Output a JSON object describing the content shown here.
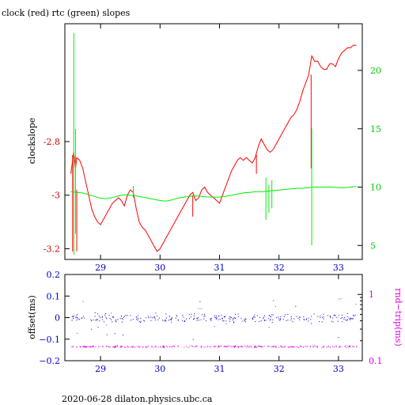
{
  "chart_data": [
    {
      "type": "line",
      "title": "clock (red) rtc (green) slopes",
      "xlabel": "",
      "ylabel": "clockslope",
      "xlim": [
        28.4,
        33.4
      ],
      "ylim": [
        -3.24,
        -2.36
      ],
      "y2lim": [
        3.8,
        24.0
      ],
      "x_ticks": [
        29,
        30,
        31,
        32,
        33
      ],
      "y_ticks": [
        -2.8,
        -3,
        -3.2
      ],
      "y_tick_labels": [
        "-2.8",
        "-3",
        "-3.2"
      ],
      "y2_ticks": [
        5,
        10,
        15,
        20
      ],
      "series": [
        {
          "name": "clock",
          "axis": "left",
          "color": "#ff0000",
          "points": [
            [
              28.5,
              -2.92
            ],
            [
              28.55,
              -2.84
            ],
            [
              28.58,
              -2.9
            ],
            [
              28.6,
              -2.86
            ],
            [
              28.65,
              -2.87
            ],
            [
              28.7,
              -2.9
            ],
            [
              28.75,
              -2.95
            ],
            [
              28.8,
              -3.0
            ],
            [
              28.85,
              -3.05
            ],
            [
              28.9,
              -3.08
            ],
            [
              28.95,
              -3.1
            ],
            [
              29.0,
              -3.11
            ],
            [
              29.05,
              -3.09
            ],
            [
              29.1,
              -3.07
            ],
            [
              29.15,
              -3.05
            ],
            [
              29.2,
              -3.03
            ],
            [
              29.3,
              -3.01
            ],
            [
              29.35,
              -3.02
            ],
            [
              29.4,
              -3.04
            ],
            [
              29.45,
              -3.0
            ],
            [
              29.5,
              -2.98
            ],
            [
              29.55,
              -2.99
            ],
            [
              29.6,
              -3.05
            ],
            [
              29.65,
              -3.1
            ],
            [
              29.7,
              -3.12
            ],
            [
              29.75,
              -3.13
            ],
            [
              29.8,
              -3.15
            ],
            [
              29.85,
              -3.17
            ],
            [
              29.9,
              -3.19
            ],
            [
              29.95,
              -3.21
            ],
            [
              30.0,
              -3.2
            ],
            [
              30.05,
              -3.18
            ],
            [
              30.1,
              -3.16
            ],
            [
              30.15,
              -3.14
            ],
            [
              30.2,
              -3.12
            ],
            [
              30.25,
              -3.1
            ],
            [
              30.3,
              -3.08
            ],
            [
              30.35,
              -3.06
            ],
            [
              30.4,
              -3.04
            ],
            [
              30.45,
              -3.02
            ],
            [
              30.5,
              -3.0
            ],
            [
              30.55,
              -2.99
            ],
            [
              30.6,
              -3.02
            ],
            [
              30.65,
              -3.01
            ],
            [
              30.7,
              -2.98
            ],
            [
              30.75,
              -2.97
            ],
            [
              30.8,
              -2.99
            ],
            [
              30.85,
              -3.0
            ],
            [
              30.9,
              -3.01
            ],
            [
              30.95,
              -3.02
            ],
            [
              31.0,
              -3.03
            ],
            [
              31.05,
              -3.0
            ],
            [
              31.1,
              -2.97
            ],
            [
              31.15,
              -2.94
            ],
            [
              31.2,
              -2.91
            ],
            [
              31.25,
              -2.89
            ],
            [
              31.3,
              -2.87
            ],
            [
              31.35,
              -2.86
            ],
            [
              31.4,
              -2.87
            ],
            [
              31.45,
              -2.86
            ],
            [
              31.5,
              -2.87
            ],
            [
              31.55,
              -2.88
            ],
            [
              31.6,
              -2.86
            ],
            [
              31.65,
              -2.82
            ],
            [
              31.7,
              -2.79
            ],
            [
              31.75,
              -2.81
            ],
            [
              31.8,
              -2.83
            ],
            [
              31.85,
              -2.84
            ],
            [
              31.9,
              -2.83
            ],
            [
              31.95,
              -2.81
            ],
            [
              32.0,
              -2.79
            ],
            [
              32.05,
              -2.77
            ],
            [
              32.1,
              -2.75
            ],
            [
              32.15,
              -2.73
            ],
            [
              32.2,
              -2.71
            ],
            [
              32.25,
              -2.7
            ],
            [
              32.3,
              -2.68
            ],
            [
              32.35,
              -2.65
            ],
            [
              32.4,
              -2.61
            ],
            [
              32.45,
              -2.58
            ],
            [
              32.5,
              -2.55
            ],
            [
              32.55,
              -2.48
            ],
            [
              32.6,
              -2.5
            ],
            [
              32.65,
              -2.5
            ],
            [
              32.7,
              -2.52
            ],
            [
              32.75,
              -2.53
            ],
            [
              32.8,
              -2.53
            ],
            [
              32.85,
              -2.51
            ],
            [
              32.9,
              -2.51
            ],
            [
              32.95,
              -2.52
            ],
            [
              33.0,
              -2.49
            ],
            [
              33.05,
              -2.47
            ],
            [
              33.1,
              -2.46
            ],
            [
              33.15,
              -2.45
            ],
            [
              33.2,
              -2.45
            ],
            [
              33.25,
              -2.44
            ],
            [
              33.3,
              -2.44
            ]
          ],
          "spikes": [
            [
              28.53,
              -2.85,
              -3.21
            ],
            [
              28.6,
              -2.98,
              -3.21
            ],
            [
              30.55,
              -3.0,
              -3.08
            ],
            [
              31.62,
              -2.85,
              -2.92
            ],
            [
              32.54,
              -2.55,
              -2.9
            ]
          ]
        },
        {
          "name": "rtc",
          "axis": "right",
          "color": "#00ee00",
          "points": [
            [
              28.5,
              9.6
            ],
            [
              28.6,
              9.55
            ],
            [
              28.7,
              9.5
            ],
            [
              28.8,
              9.35
            ],
            [
              28.9,
              9.2
            ],
            [
              29.0,
              9.05
            ],
            [
              29.1,
              9.0
            ],
            [
              29.2,
              9.1
            ],
            [
              29.3,
              9.25
            ],
            [
              29.4,
              9.35
            ],
            [
              29.5,
              9.3
            ],
            [
              29.6,
              9.25
            ],
            [
              29.7,
              9.15
            ],
            [
              29.8,
              9.05
            ],
            [
              29.9,
              8.95
            ],
            [
              30.0,
              8.85
            ],
            [
              30.1,
              8.8
            ],
            [
              30.2,
              8.9
            ],
            [
              30.3,
              9.05
            ],
            [
              30.4,
              9.15
            ],
            [
              30.5,
              9.2
            ],
            [
              30.6,
              9.25
            ],
            [
              30.7,
              9.2
            ],
            [
              30.8,
              9.15
            ],
            [
              30.9,
              9.15
            ],
            [
              31.0,
              9.15
            ],
            [
              31.1,
              9.2
            ],
            [
              31.2,
              9.3
            ],
            [
              31.3,
              9.4
            ],
            [
              31.4,
              9.5
            ],
            [
              31.5,
              9.55
            ],
            [
              31.6,
              9.6
            ],
            [
              31.7,
              9.6
            ],
            [
              31.8,
              9.65
            ],
            [
              31.9,
              9.7
            ],
            [
              32.0,
              9.75
            ],
            [
              32.1,
              9.8
            ],
            [
              32.2,
              9.85
            ],
            [
              32.3,
              9.9
            ],
            [
              32.4,
              9.9
            ],
            [
              32.5,
              9.95
            ],
            [
              32.6,
              10.0
            ],
            [
              32.7,
              10.0
            ],
            [
              32.8,
              10.0
            ],
            [
              32.9,
              10.0
            ],
            [
              33.0,
              9.95
            ],
            [
              33.1,
              9.95
            ],
            [
              33.2,
              10.0
            ],
            [
              33.3,
              10.05
            ]
          ],
          "spikes": [
            [
              28.55,
              4.2,
              23.2
            ],
            [
              28.58,
              6.0,
              15.0
            ],
            [
              29.55,
              9.1,
              10.1
            ],
            [
              31.78,
              7.2,
              10.8
            ],
            [
              31.83,
              7.8,
              10.2
            ],
            [
              31.88,
              8.2,
              10.6
            ],
            [
              32.55,
              5.0,
              15.0
            ]
          ]
        }
      ]
    },
    {
      "type": "scatter",
      "title": "",
      "xlabel": "",
      "ylabel": "offset(ms)",
      "y2label": "rnd−trip(ms)",
      "xlim": [
        28.4,
        33.4
      ],
      "ylim": [
        -0.2,
        0.2
      ],
      "y2lim_log": [
        0.1,
        2.0
      ],
      "x_ticks": [
        29,
        30,
        31,
        32,
        33
      ],
      "y_ticks": [
        0.2,
        0.1,
        0,
        -0.1,
        -0.2
      ],
      "y_tick_labels": [
        "0.2",
        "0.1",
        "0",
        "−0.1",
        "−0.2"
      ],
      "y2_ticks": [
        1,
        0.1
      ],
      "y2_tick_labels": [
        "1",
        "0.1"
      ],
      "series": [
        {
          "name": "offset",
          "axis": "left",
          "color": "#0000cc",
          "center": 0.0,
          "spread": 0.03,
          "count": 300
        },
        {
          "name": "rnd-trip",
          "axis": "right",
          "color": "#dd00dd",
          "center": 0.165,
          "spread": 0.008,
          "count": 300
        }
      ]
    }
  ],
  "footer": {
    "text": "2020-06-28  dilaton.physics.ubc.ca"
  }
}
